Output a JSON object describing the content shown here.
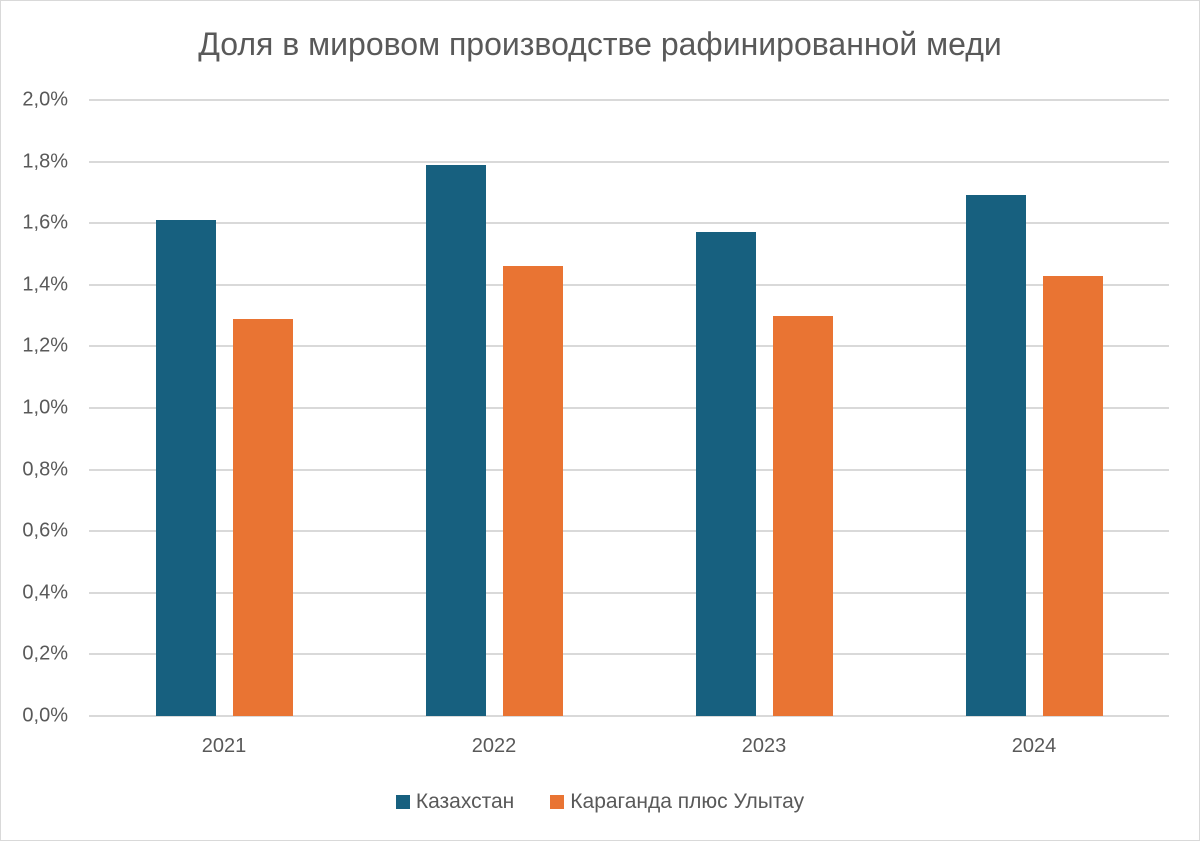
{
  "chart_data": {
    "type": "bar",
    "title": "Доля в мировом производстве рафинированной меди",
    "xlabel": "",
    "ylabel": "",
    "categories": [
      "2021",
      "2022",
      "2023",
      "2024"
    ],
    "series": [
      {
        "name": "Казахстан",
        "color": "#17607f",
        "values": [
          1.61,
          1.79,
          1.57,
          1.69
        ]
      },
      {
        "name": "Караганда плюс Улытау",
        "color": "#e97433",
        "values": [
          1.29,
          1.46,
          1.3,
          1.43
        ]
      }
    ],
    "ylim": [
      0,
      2.0
    ],
    "yticks": [
      "0,0%",
      "0,2%",
      "0,4%",
      "0,6%",
      "0,8%",
      "1,0%",
      "1,2%",
      "1,4%",
      "1,6%",
      "1,8%",
      "2,0%"
    ],
    "grid": true,
    "legend_position": "bottom",
    "value_unit": "%"
  }
}
